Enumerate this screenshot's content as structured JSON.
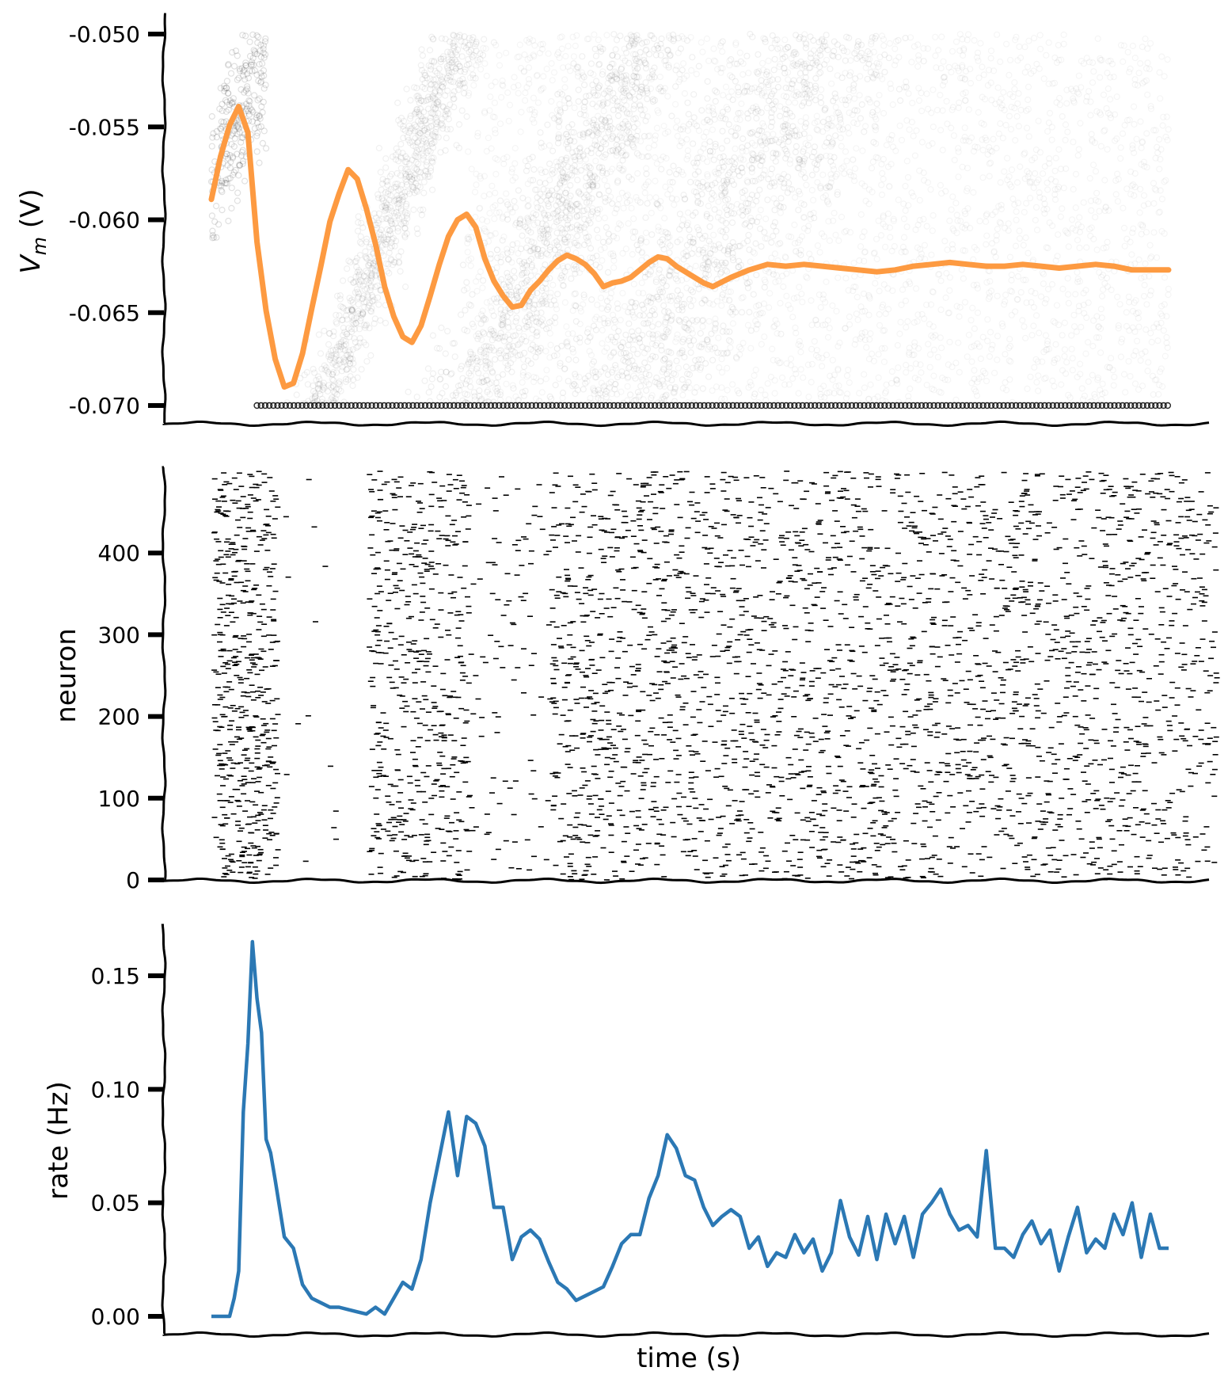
{
  "colors": {
    "vm_mean": "#fd9a41",
    "rate": "#2b78b4",
    "axis": "#000000",
    "scatter": "#000000"
  },
  "chart_data": [
    {
      "id": "vm",
      "type": "scatter",
      "ylabel": "V_m (V)",
      "xlabel": "",
      "ylim": [
        -0.0705,
        -0.0495
      ],
      "xlim": [
        0,
        1.1
      ],
      "yticks": [
        -0.05,
        -0.055,
        -0.06,
        -0.065,
        -0.07
      ],
      "ytick_labels": [
        "-0.050",
        "-0.055",
        "-0.060",
        "-0.065",
        "-0.070"
      ],
      "scatter": "membrane potential of individual neurons, dense grey points between -0.070 and -0.050",
      "mean_series": {
        "x": [
          0.05,
          0.06,
          0.07,
          0.08,
          0.09,
          0.1,
          0.11,
          0.12,
          0.13,
          0.14,
          0.15,
          0.16,
          0.17,
          0.18,
          0.19,
          0.2,
          0.21,
          0.22,
          0.23,
          0.24,
          0.25,
          0.26,
          0.27,
          0.28,
          0.29,
          0.3,
          0.31,
          0.32,
          0.33,
          0.34,
          0.35,
          0.36,
          0.37,
          0.38,
          0.39,
          0.4,
          0.41,
          0.42,
          0.43,
          0.44,
          0.45,
          0.46,
          0.47,
          0.48,
          0.49,
          0.5,
          0.51,
          0.52,
          0.53,
          0.54,
          0.55,
          0.56,
          0.57,
          0.58,
          0.59,
          0.6,
          0.62,
          0.64,
          0.66,
          0.68,
          0.7,
          0.72,
          0.74,
          0.76,
          0.78,
          0.8,
          0.82,
          0.84,
          0.86,
          0.88,
          0.9,
          0.92,
          0.94,
          0.96,
          0.98,
          1.0,
          1.02,
          1.04,
          1.06,
          1.08,
          1.1
        ],
        "y": [
          -0.0589,
          -0.0566,
          -0.0549,
          -0.0539,
          -0.0553,
          -0.0612,
          -0.0649,
          -0.0675,
          -0.069,
          -0.0688,
          -0.0672,
          -0.0648,
          -0.0625,
          -0.0601,
          -0.0586,
          -0.0573,
          -0.0578,
          -0.0594,
          -0.0613,
          -0.0636,
          -0.0652,
          -0.0663,
          -0.0666,
          -0.0657,
          -0.0641,
          -0.0624,
          -0.0609,
          -0.06,
          -0.0597,
          -0.0604,
          -0.0621,
          -0.0633,
          -0.0641,
          -0.0647,
          -0.0646,
          -0.0638,
          -0.0633,
          -0.0627,
          -0.0622,
          -0.0619,
          -0.0621,
          -0.0624,
          -0.0629,
          -0.0636,
          -0.0634,
          -0.0633,
          -0.0631,
          -0.0627,
          -0.0623,
          -0.062,
          -0.0621,
          -0.0625,
          -0.0628,
          -0.0631,
          -0.0634,
          -0.0636,
          -0.0631,
          -0.0627,
          -0.0624,
          -0.0625,
          -0.0624,
          -0.0625,
          -0.0626,
          -0.0627,
          -0.0628,
          -0.0627,
          -0.0625,
          -0.0624,
          -0.0623,
          -0.0624,
          -0.0625,
          -0.0625,
          -0.0624,
          -0.0625,
          -0.0626,
          -0.0625,
          -0.0624,
          -0.0625,
          -0.0627,
          -0.0627,
          -0.0627
        ]
      }
    },
    {
      "id": "raster",
      "type": "scatter",
      "ylabel": "neuron",
      "xlabel": "",
      "ylim": [
        0,
        500
      ],
      "xlim": [
        0,
        1.1
      ],
      "yticks": [
        0,
        100,
        200,
        300,
        400
      ],
      "ytick_labels": [
        "0",
        "100",
        "200",
        "300",
        "400"
      ],
      "scatter": "spike raster, one short horizontal tick per spike"
    },
    {
      "id": "rate",
      "type": "line",
      "ylabel": "rate (Hz)",
      "xlabel": "time (s)",
      "ylim": [
        -0.004,
        0.17
      ],
      "xlim": [
        0,
        1.1
      ],
      "yticks": [
        0.0,
        0.05,
        0.1,
        0.15
      ],
      "ytick_labels": [
        "0.00",
        "0.05",
        "0.10",
        "0.15"
      ],
      "series": [
        {
          "x": [
            0.05,
            0.06,
            0.07,
            0.075,
            0.08,
            0.085,
            0.09,
            0.095,
            0.1,
            0.105,
            0.11,
            0.115,
            0.12,
            0.13,
            0.14,
            0.15,
            0.16,
            0.17,
            0.18,
            0.19,
            0.2,
            0.21,
            0.22,
            0.23,
            0.24,
            0.25,
            0.26,
            0.27,
            0.28,
            0.29,
            0.3,
            0.31,
            0.32,
            0.33,
            0.34,
            0.35,
            0.36,
            0.37,
            0.38,
            0.39,
            0.4,
            0.41,
            0.42,
            0.43,
            0.44,
            0.45,
            0.46,
            0.47,
            0.48,
            0.49,
            0.5,
            0.51,
            0.52,
            0.53,
            0.54,
            0.55,
            0.56,
            0.57,
            0.58,
            0.59,
            0.6,
            0.61,
            0.62,
            0.63,
            0.64,
            0.65,
            0.66,
            0.67,
            0.68,
            0.69,
            0.7,
            0.71,
            0.72,
            0.73,
            0.74,
            0.75,
            0.76,
            0.77,
            0.78,
            0.79,
            0.8,
            0.81,
            0.82,
            0.83,
            0.84,
            0.85,
            0.86,
            0.87,
            0.88,
            0.89,
            0.9,
            0.91,
            0.92,
            0.93,
            0.94,
            0.95,
            0.96,
            0.97,
            0.98,
            0.99,
            1.0,
            1.01,
            1.02,
            1.03,
            1.04,
            1.05,
            1.06,
            1.07,
            1.08,
            1.09,
            1.1
          ],
          "values": [
            0.0,
            0.0,
            0.0,
            0.008,
            0.02,
            0.09,
            0.12,
            0.165,
            0.14,
            0.125,
            0.078,
            0.072,
            0.06,
            0.035,
            0.03,
            0.014,
            0.008,
            0.006,
            0.004,
            0.004,
            0.003,
            0.002,
            0.001,
            0.004,
            0.001,
            0.008,
            0.015,
            0.012,
            0.025,
            0.05,
            0.07,
            0.09,
            0.062,
            0.088,
            0.085,
            0.075,
            0.048,
            0.048,
            0.025,
            0.035,
            0.038,
            0.034,
            0.024,
            0.015,
            0.012,
            0.007,
            0.009,
            0.011,
            0.013,
            0.022,
            0.032,
            0.036,
            0.036,
            0.052,
            0.062,
            0.08,
            0.074,
            0.062,
            0.06,
            0.048,
            0.04,
            0.044,
            0.047,
            0.044,
            0.03,
            0.035,
            0.022,
            0.028,
            0.026,
            0.036,
            0.028,
            0.034,
            0.02,
            0.028,
            0.051,
            0.035,
            0.027,
            0.044,
            0.025,
            0.045,
            0.032,
            0.044,
            0.026,
            0.045,
            0.05,
            0.056,
            0.045,
            0.038,
            0.04,
            0.035,
            0.073,
            0.03,
            0.03,
            0.026,
            0.036,
            0.042,
            0.032,
            0.038,
            0.02,
            0.035,
            0.048,
            0.028,
            0.034,
            0.03,
            0.045,
            0.036,
            0.05,
            0.026,
            0.045,
            0.03,
            0.03
          ]
        }
      ]
    }
  ]
}
